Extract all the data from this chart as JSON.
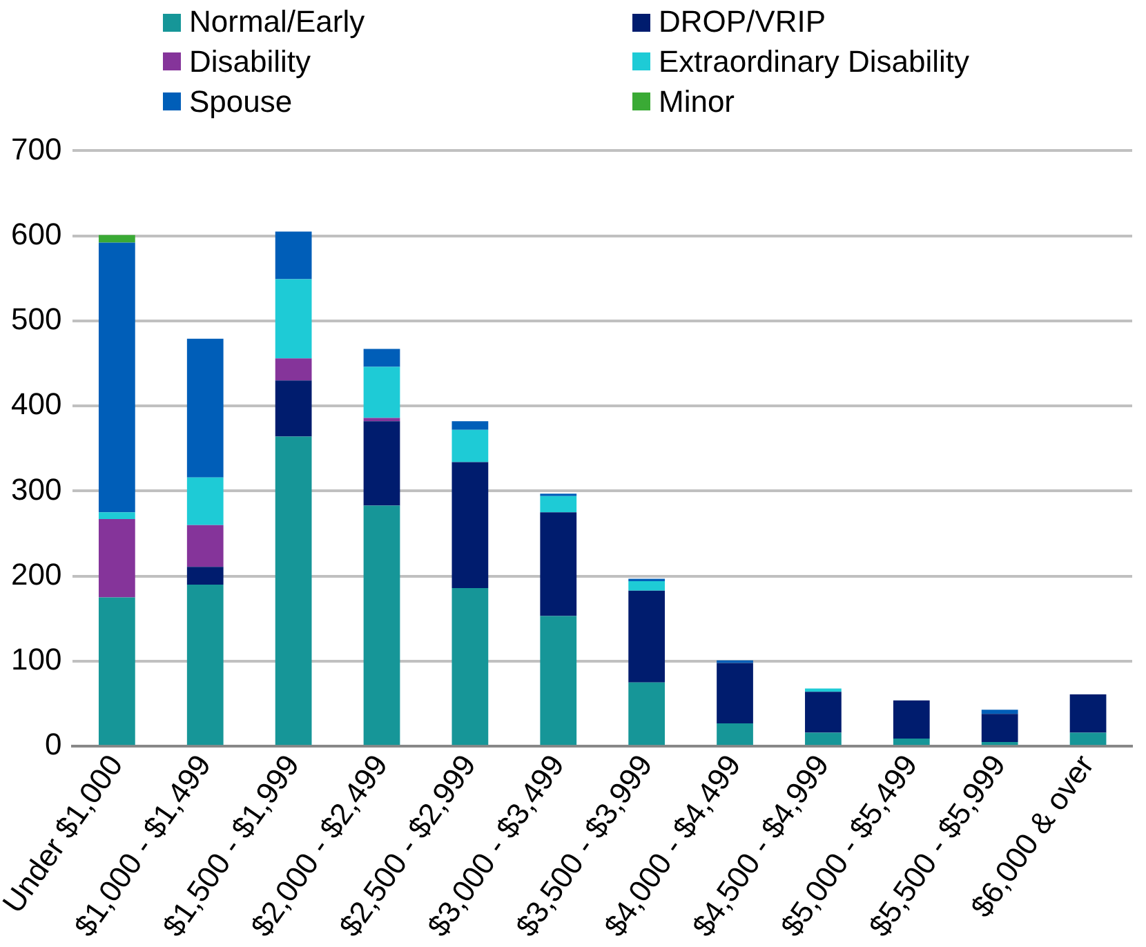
{
  "chart_data": {
    "type": "bar",
    "stacked": true,
    "legend": "top",
    "grid": "y",
    "categories": [
      "Under $1,000",
      "$1,000 - $1,499",
      "$1,500 - $1,999",
      "$2,000 - $2,499",
      "$2,500 - $2,999",
      "$3,000 - $3,499",
      "$3,500 - $3,999",
      "$4,000 - $4,499",
      "$4,500 - $4,999",
      "$5,000 - $5,499",
      "$5,500 - $5,999",
      "$6,000 & over"
    ],
    "ylim": [
      0,
      700
    ],
    "yticks": [
      0,
      100,
      200,
      300,
      400,
      500,
      600,
      700
    ],
    "series": [
      {
        "name": "Normal/Early",
        "color": "#169698",
        "values": [
          175,
          190,
          364,
          283,
          186,
          153,
          75,
          27,
          16,
          9,
          5,
          16
        ]
      },
      {
        "name": "DROP/VRIP",
        "color": "#001c6e",
        "values": [
          0,
          21,
          66,
          99,
          148,
          122,
          108,
          71,
          48,
          45,
          33,
          45
        ]
      },
      {
        "name": "Disability",
        "color": "#85349a",
        "values": [
          92,
          49,
          26,
          4,
          0,
          0,
          0,
          0,
          0,
          0,
          0,
          0
        ]
      },
      {
        "name": "Extraordinary Disability",
        "color": "#1ecbd6",
        "values": [
          8,
          56,
          93,
          60,
          38,
          19,
          11,
          0,
          4,
          0,
          0,
          0
        ]
      },
      {
        "name": "Spouse",
        "color": "#005eb8",
        "values": [
          317,
          163,
          56,
          21,
          10,
          3,
          3,
          3,
          0,
          0,
          5,
          0
        ]
      },
      {
        "name": "Minor",
        "color": "#3aaa35",
        "values": [
          9,
          0,
          0,
          0,
          0,
          0,
          0,
          0,
          0,
          0,
          0,
          0
        ]
      }
    ]
  }
}
